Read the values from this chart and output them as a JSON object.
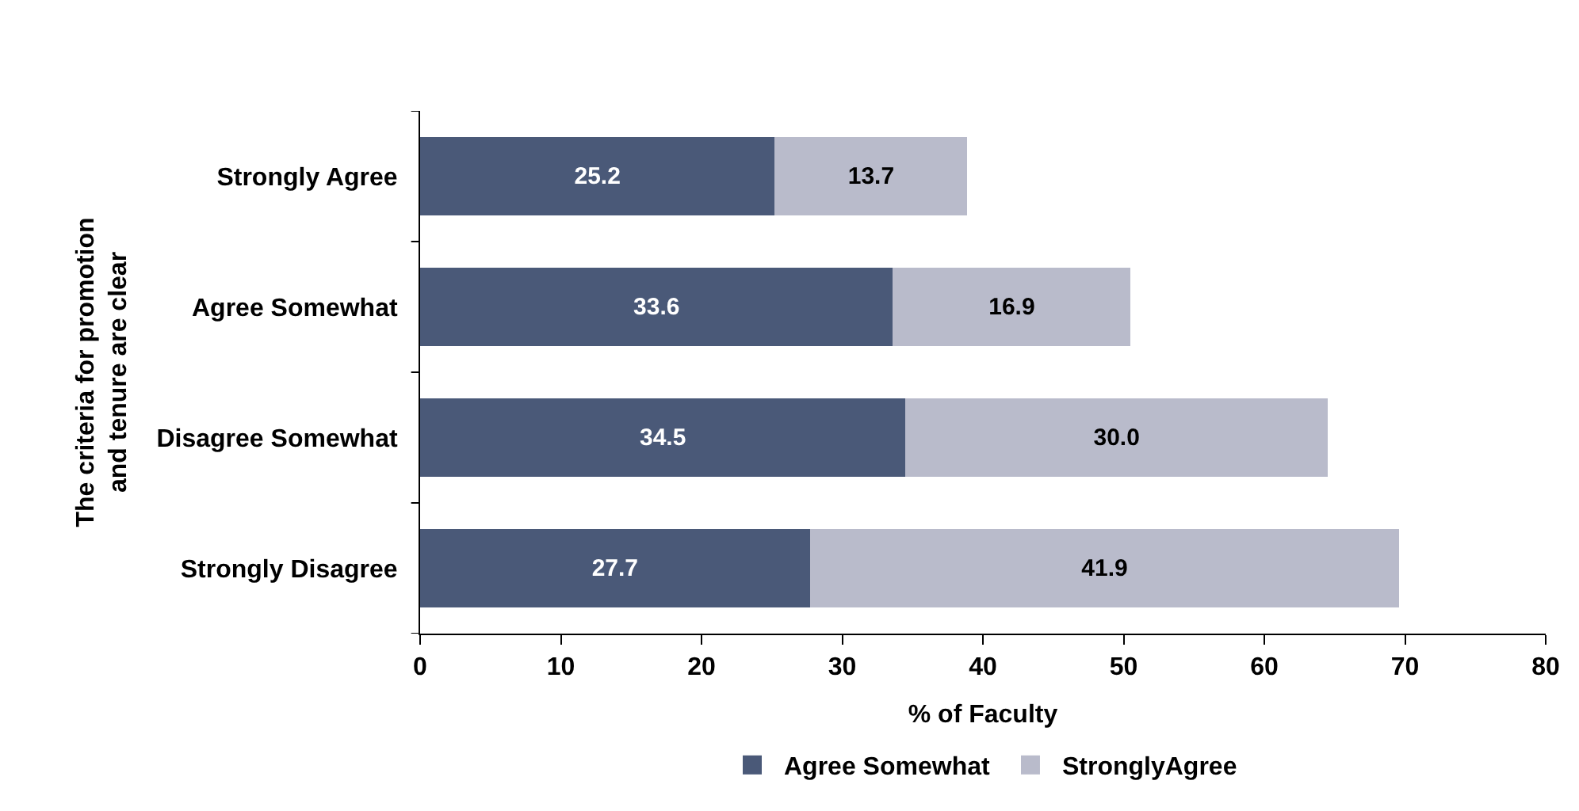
{
  "chart_data": {
    "type": "bar",
    "orientation": "horizontal",
    "stacked": true,
    "legend": "bottom",
    "xlabel": "% of Faculty",
    "ylabel": "The criteria for promotion\nand tenure are clear",
    "categories": [
      "Strongly Agree",
      "Agree Somewhat",
      "Disagree Somewhat",
      "Strongly Disagree"
    ],
    "xlim": [
      0,
      80
    ],
    "xticks": [
      0,
      10,
      20,
      30,
      40,
      50,
      60,
      70,
      80
    ],
    "series": [
      {
        "name": "Agree Somewhat",
        "color": "#4a5978",
        "values": [
          25.2,
          33.6,
          34.5,
          27.7
        ],
        "value_labels": [
          "25.2",
          "33.6",
          "34.5",
          "27.7"
        ]
      },
      {
        "name": "StronglyAgree",
        "color": "#b9bbcb",
        "values": [
          13.7,
          16.9,
          30.0,
          41.9
        ],
        "value_labels": [
          "13.7",
          "16.9",
          "30.0",
          "41.9"
        ]
      }
    ]
  }
}
